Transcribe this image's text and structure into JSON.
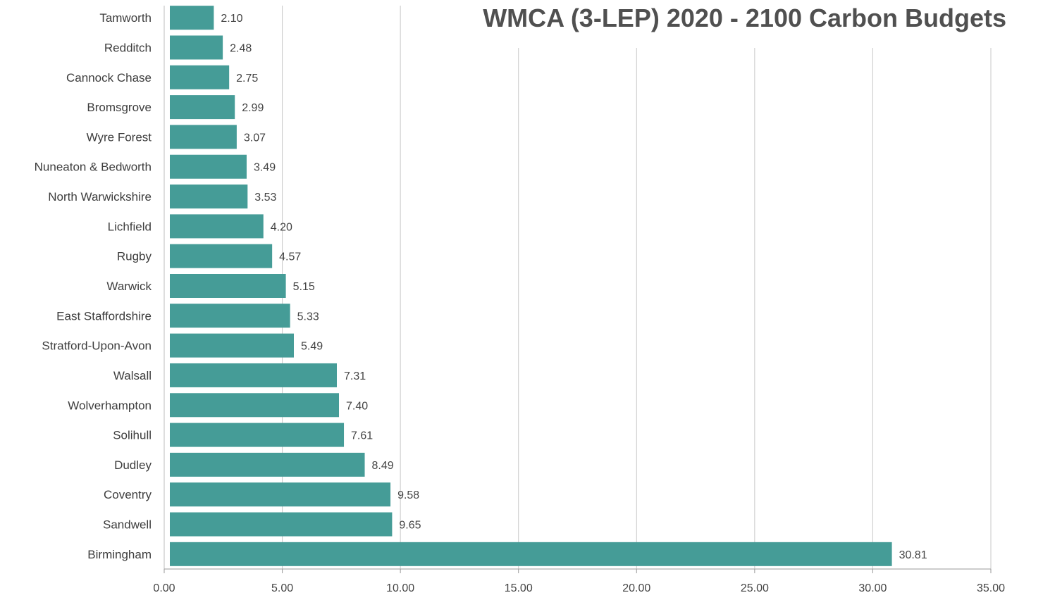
{
  "chart_data": {
    "type": "bar",
    "orientation": "horizontal",
    "title": "WMCA (3-LEP) 2020 - 2100 Carbon Budgets",
    "xlabel": "",
    "ylabel": "",
    "xlim": [
      0,
      35
    ],
    "x_ticks": [
      "0.00",
      "5.00",
      "10.00",
      "15.00",
      "20.00",
      "25.00",
      "30.00",
      "35.00"
    ],
    "grid": "vertical",
    "legend": "none",
    "bar_color": "#459c97",
    "categories": [
      "Tamworth",
      "Redditch",
      "Cannock Chase",
      "Bromsgrove",
      "Wyre Forest",
      "Nuneaton & Bedworth",
      "North Warwickshire",
      "Lichfield",
      "Rugby",
      "Warwick",
      "East Staffordshire",
      "Stratford-Upon-Avon",
      "Walsall",
      "Wolverhampton",
      "Solihull",
      "Dudley",
      "Coventry",
      "Sandwell",
      "Birmingham"
    ],
    "values": [
      2.1,
      2.48,
      2.75,
      2.99,
      3.07,
      3.49,
      3.53,
      4.2,
      4.57,
      5.15,
      5.33,
      5.49,
      7.31,
      7.4,
      7.61,
      8.49,
      9.58,
      9.65,
      30.81
    ],
    "value_labels": [
      "2.10",
      "2.48",
      "2.75",
      "2.99",
      "3.07",
      "3.49",
      "3.53",
      "4.20",
      "4.57",
      "5.15",
      "5.33",
      "5.49",
      "7.31",
      "7.40",
      "7.61",
      "8.49",
      "9.58",
      "9.65",
      "30.81"
    ]
  }
}
